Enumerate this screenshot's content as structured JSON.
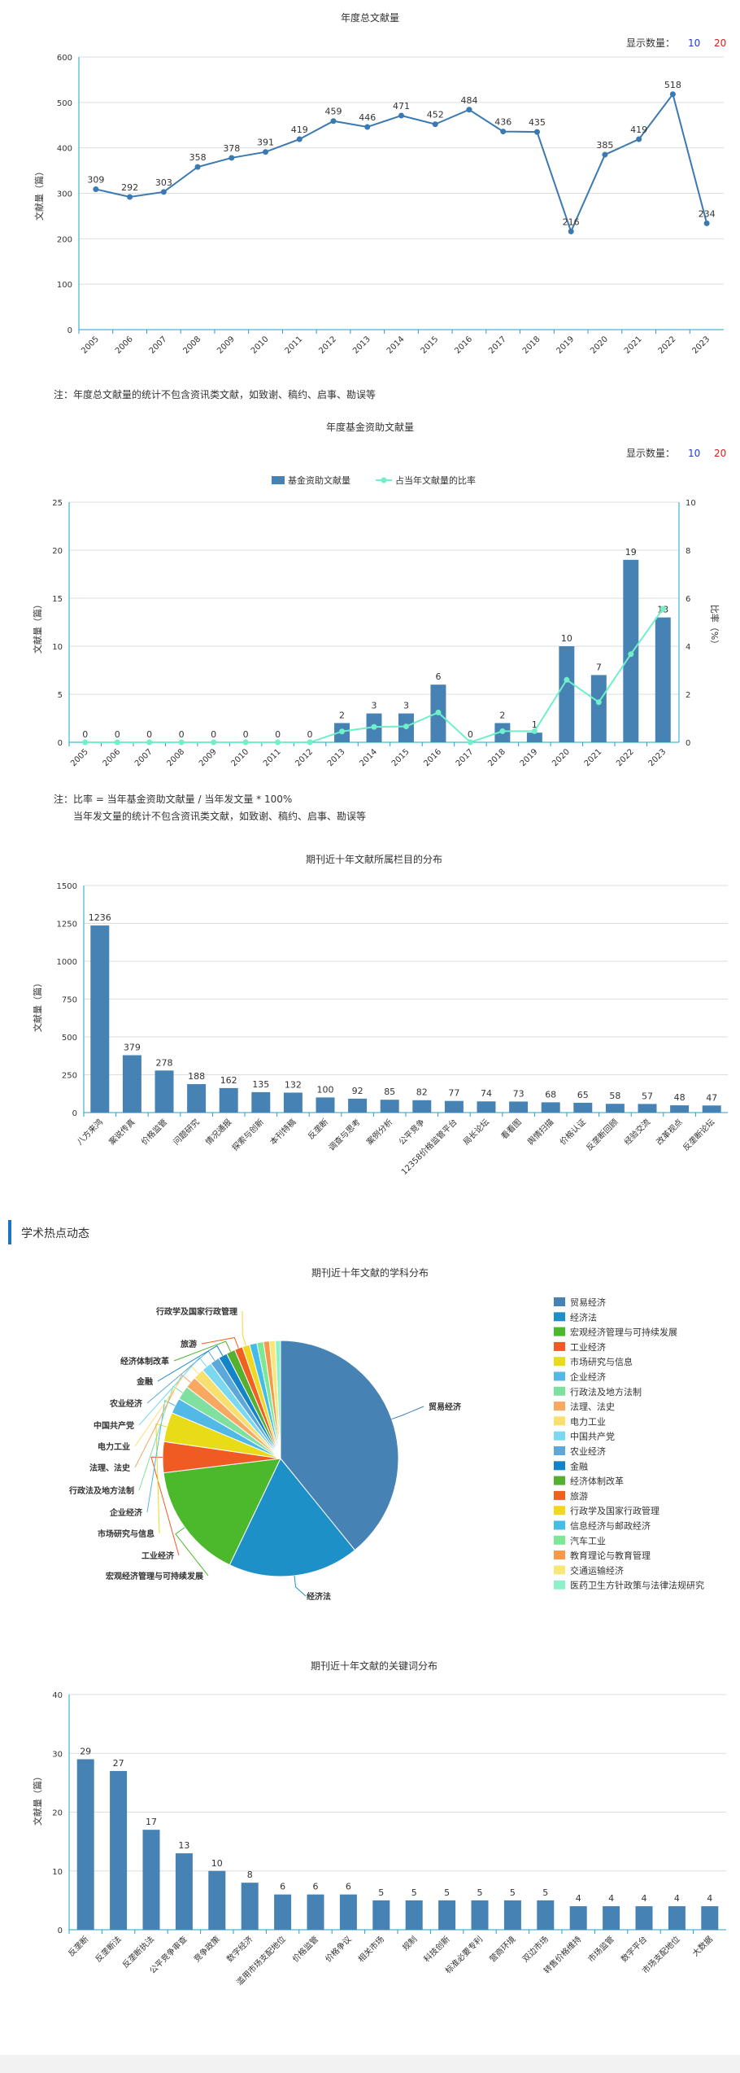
{
  "colors": {
    "line": "#3b79b1",
    "bar": "#4682b4",
    "ratio": "#6ff0c8",
    "axis": "#19a5c9",
    "grid": "#dddddd",
    "count10": "#1f3bd8",
    "count20": "#e21b1b",
    "section": "#1a76c2"
  },
  "display_count": {
    "label": "显示数量：",
    "opt10": "10",
    "opt20": "20"
  },
  "chart1": {
    "title": "年度总文献量",
    "ylabel": "文献量（篇）",
    "note": "注：年度总文献量的统计不包含资讯类文献，如致谢、稿约、启事、勘误等"
  },
  "chart2": {
    "title": "年度基金资助文献量",
    "ylabel": "文献量（篇）",
    "y2label": "比率（%）",
    "legend_bar": "基金资助文献量",
    "legend_line": "占当年文献量的比率",
    "note1": "注：比率 = 当年基金资助文献量 / 当年发文量 * 100%",
    "note2": "当年发文量的统计不包含资讯类文献，如致谢、稿约、启事、勘误等"
  },
  "chart3": {
    "title": "期刊近十年文献所属栏目的分布",
    "ylabel": "文献量（篇）"
  },
  "section": {
    "title": "学术热点动态"
  },
  "chart4": {
    "title": "期刊近十年文献的学科分布"
  },
  "chart5": {
    "title": "期刊近十年文献的关键词分布",
    "ylabel": "文献量（篇）"
  },
  "chart_data": [
    {
      "type": "line",
      "title": "年度总文献量",
      "ylabel": "文献量（篇）",
      "x": [
        "2005",
        "2006",
        "2007",
        "2008",
        "2009",
        "2010",
        "2011",
        "2012",
        "2013",
        "2014",
        "2015",
        "2016",
        "2017",
        "2018",
        "2019",
        "2020",
        "2021",
        "2022",
        "2023"
      ],
      "values": [
        309,
        292,
        303,
        358,
        378,
        391,
        419,
        459,
        446,
        471,
        452,
        484,
        436,
        435,
        216,
        385,
        419,
        518,
        234
      ],
      "ylim": [
        0,
        600
      ],
      "yticks": [
        0,
        100,
        200,
        300,
        400,
        500,
        600
      ],
      "grid": true
    },
    {
      "type": "bar",
      "title": "年度基金资助文献量",
      "ylabel": "文献量（篇）",
      "y2label": "比率（%）",
      "x": [
        "2005",
        "2006",
        "2007",
        "2008",
        "2009",
        "2010",
        "2011",
        "2012",
        "2013",
        "2014",
        "2015",
        "2016",
        "2017",
        "2018",
        "2019",
        "2020",
        "2021",
        "2022",
        "2023"
      ],
      "series": [
        {
          "name": "基金资助文献量",
          "values": [
            0,
            0,
            0,
            0,
            0,
            0,
            0,
            0,
            2,
            3,
            3,
            6,
            0,
            2,
            1,
            10,
            7,
            19,
            13
          ]
        },
        {
          "name": "占当年文献量的比率",
          "values": [
            0,
            0,
            0,
            0,
            0,
            0,
            0,
            0,
            0.45,
            0.64,
            0.66,
            1.24,
            0,
            0.46,
            0.46,
            2.6,
            1.67,
            3.67,
            5.56
          ]
        }
      ],
      "ylim": [
        0,
        25
      ],
      "yticks": [
        0,
        5,
        10,
        15,
        20,
        25
      ],
      "y2lim": [
        0,
        10
      ],
      "y2ticks": [
        0,
        2,
        4,
        6,
        8,
        10
      ],
      "legend": "top-center"
    },
    {
      "type": "bar",
      "title": "期刊近十年文献所属栏目的分布",
      "ylabel": "文献量（篇）",
      "categories": [
        "八方来鸿",
        "案说传真",
        "价格监管",
        "问题研究",
        "情况通报",
        "探索与创新",
        "本刊特稿",
        "反垄断",
        "调查与思考",
        "案例分析",
        "公平竞争",
        "12358价格监管平台",
        "局长论坛",
        "看看图",
        "舆情扫描",
        "价格认证",
        "反垄断回顾",
        "经验交流",
        "改革视点",
        "反垄断论坛"
      ],
      "values": [
        1236,
        379,
        278,
        188,
        162,
        135,
        132,
        100,
        92,
        85,
        82,
        77,
        74,
        73,
        68,
        65,
        58,
        57,
        48,
        47
      ],
      "ylim": [
        0,
        1500
      ],
      "yticks": [
        0,
        250,
        500,
        750,
        1000,
        1250,
        1500
      ]
    },
    {
      "type": "pie",
      "title": "期刊近十年文献的学科分布",
      "categories": [
        "贸易经济",
        "经济法",
        "宏观经济管理与可持续发展",
        "工业经济",
        "市场研究与信息",
        "企业经济",
        "行政法及地方法制",
        "法理、法史",
        "电力工业",
        "中国共产党",
        "农业经济",
        "金融",
        "经济体制改革",
        "旅游",
        "行政学及国家行政管理",
        "信息经济与邮政经济",
        "汽车工业",
        "教育理论与教育管理",
        "交通运输经济",
        "医药卫生方针政策与法律法规研究"
      ],
      "values": [
        38.8,
        17.8,
        15.8,
        4.2,
        4.0,
        2.1,
        1.9,
        1.6,
        1.5,
        1.4,
        1.3,
        1.2,
        1.2,
        1.1,
        1.0,
        1.0,
        0.9,
        0.8,
        0.8,
        0.7
      ],
      "colors": [
        "#4682b4",
        "#1e90c8",
        "#4cb92d",
        "#f05a23",
        "#e8dc18",
        "#52b8e6",
        "#80e0a0",
        "#f8a860",
        "#f8e070",
        "#7ad8f0",
        "#5ca8d8",
        "#1484c8",
        "#54b030",
        "#f06020",
        "#f0d820",
        "#44bce8",
        "#7ce894",
        "#f89848",
        "#f8e87c",
        "#8cf0c8"
      ],
      "legend": "right"
    },
    {
      "type": "bar",
      "title": "期刊近十年文献的关键词分布",
      "ylabel": "文献量（篇）",
      "categories": [
        "反垄断",
        "反垄断法",
        "反垄断执法",
        "公平竞争审查",
        "竞争政策",
        "数字经济",
        "滥用市场支配地位",
        "价格监管",
        "价格争议",
        "相关市场",
        "规制",
        "科技创新",
        "标准必要专利",
        "营商环境",
        "双边市场",
        "转售价格维持",
        "市场监管",
        "数字平台",
        "市场支配地位",
        "大数据"
      ],
      "values": [
        29,
        27,
        17,
        13,
        10,
        8,
        6,
        6,
        6,
        5,
        5,
        5,
        5,
        5,
        5,
        4,
        4,
        4,
        4,
        4
      ],
      "ylim": [
        0,
        40
      ],
      "yticks": [
        0,
        10,
        20,
        30,
        40
      ]
    }
  ]
}
